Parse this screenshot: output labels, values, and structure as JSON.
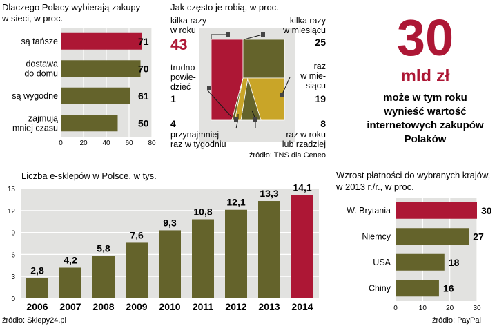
{
  "colors": {
    "olive": "#64632b",
    "crimson": "#ad1735",
    "gold": "#c9a528",
    "panel": "#e2e2e0",
    "text": "#1a1a1a"
  },
  "chart_data": [
    {
      "type": "bar",
      "orientation": "horizontal",
      "title": "Dlaczego Polacy wybierają zakupy w sieci, w proc.",
      "title_lines": [
        "Dlaczego Polacy wybierają zakupy",
        "w sieci, w proc."
      ],
      "categories": [
        "są tańsze",
        "dostawa do domu",
        "są wygodne",
        "zajmują mniej czasu"
      ],
      "category_lines": [
        [
          "są tańsze"
        ],
        [
          "dostawa",
          "do domu"
        ],
        [
          "są wygodne"
        ],
        [
          "zajmują",
          "mniej czasu"
        ]
      ],
      "values": [
        71,
        70,
        61,
        50
      ],
      "value_labels": [
        "71",
        "70",
        "61",
        "50"
      ],
      "highlight_index": 0,
      "xlim": [
        0,
        80
      ],
      "xticks": [
        "0",
        "20",
        "40",
        "60",
        "80"
      ]
    },
    {
      "type": "treemap",
      "title": "Jak często je robią, w proc.",
      "segments": [
        {
          "label": "kilka razy w roku",
          "label_lines": [
            "kilka razy",
            "w roku"
          ],
          "value": 43,
          "value_label": "43",
          "color": "#ad1735"
        },
        {
          "label": "kilka razy w miesiącu",
          "label_lines": [
            "kilka razy",
            "w miesiącu"
          ],
          "value": 25,
          "value_label": "25",
          "color": "#64632b"
        },
        {
          "label": "raz w miesiącu",
          "label_lines": [
            "raz",
            "w mie-",
            "siącu"
          ],
          "value": 19,
          "value_label": "19",
          "color": "#c9a528"
        },
        {
          "label": "raz w roku lub rzadziej",
          "label_lines": [
            "raz w roku",
            "lub rzadziej"
          ],
          "value": 8,
          "value_label": "8",
          "color": "#64632b"
        },
        {
          "label": "przynajmniej raz w tygodniu",
          "label_lines": [
            "przynajmniej",
            "raz w tygodniu"
          ],
          "value": 4,
          "value_label": "4",
          "color": "#c9a528"
        },
        {
          "label": "trudno powiedzieć",
          "label_lines": [
            "trudno",
            "powie-",
            "dzieć"
          ],
          "value": 1,
          "value_label": "1",
          "color": "#64632b"
        }
      ],
      "source": "źródło: TNS dla Ceneo"
    },
    {
      "type": "bar",
      "title": "Liczba e-sklepów w Polsce, w tys.",
      "categories": [
        "2006",
        "2007",
        "2008",
        "2009",
        "2010",
        "2011",
        "2012",
        "2013",
        "2014"
      ],
      "values": [
        2.8,
        4.2,
        5.8,
        7.6,
        9.3,
        10.8,
        12.1,
        13.3,
        14.1
      ],
      "value_labels": [
        "2,8",
        "4,2",
        "5,8",
        "7,6",
        "9,3",
        "10,8",
        "12,1",
        "13,3",
        "14,1"
      ],
      "highlight_index": 8,
      "ylim": [
        0,
        15
      ],
      "yticks": [
        "0",
        "3",
        "6",
        "9",
        "12",
        "15"
      ],
      "source": "źródło: Sklepy24.pl"
    },
    {
      "type": "bar",
      "orientation": "horizontal",
      "title": "Wzrost płatności do wybranych krajów, w 2013 r./r., w proc.",
      "title_lines": [
        "Wzrost płatności do wybranych krajów,",
        "w 2013 r./r.,  w proc."
      ],
      "categories": [
        "W. Brytania",
        "Niemcy",
        "USA",
        "Chiny"
      ],
      "values": [
        30,
        27,
        18,
        16
      ],
      "value_labels": [
        "30",
        "27",
        "18",
        "16"
      ],
      "highlight_index": 0,
      "xlim": [
        0,
        30
      ],
      "xticks": [
        "0",
        "10",
        "20",
        "30"
      ],
      "source": "źródło: PayPal"
    }
  ],
  "callout": {
    "number": "30",
    "unit": "mld zł",
    "text_lines": [
      "może w tym roku",
      "wynieść wartość",
      "internetowych zakupów",
      "Polaków"
    ]
  }
}
